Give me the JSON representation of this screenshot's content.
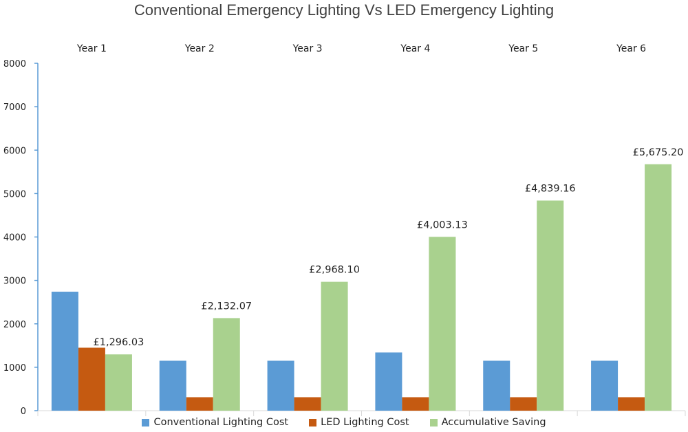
{
  "chart_data": {
    "type": "bar",
    "title": "Conventional Emergency Lighting Vs LED Emergency Lighting",
    "categories": [
      "Year 1",
      "Year 2",
      "Year 3",
      "Year 4",
      "Year 5",
      "Year 6"
    ],
    "ylim": [
      0,
      8000
    ],
    "yticks": [
      "0",
      "1000",
      "2000",
      "3000",
      "4000",
      "5000",
      "6000",
      "7000",
      "8000"
    ],
    "category_axis_position": "top",
    "legend_position": "bottom",
    "grid": false,
    "series": [
      {
        "name": "Conventional Lighting Cost",
        "color": "#5b9bd5",
        "values": [
          2740,
          1150,
          1150,
          1340,
          1150,
          1150
        ]
      },
      {
        "name": "LED Lighting Cost",
        "color": "#c55a11",
        "values": [
          1450,
          310,
          310,
          310,
          310,
          310
        ]
      },
      {
        "name": "Accumulative Saving",
        "color": "#a9d18e",
        "values": [
          1296.03,
          2132.07,
          2968.1,
          4003.13,
          4839.16,
          5675.2
        ],
        "labels": [
          "£1,296.03",
          "£2,132.07",
          "£2,968.10",
          "£4,003.13",
          "£4,839.16",
          "£5,675.20"
        ]
      }
    ]
  }
}
